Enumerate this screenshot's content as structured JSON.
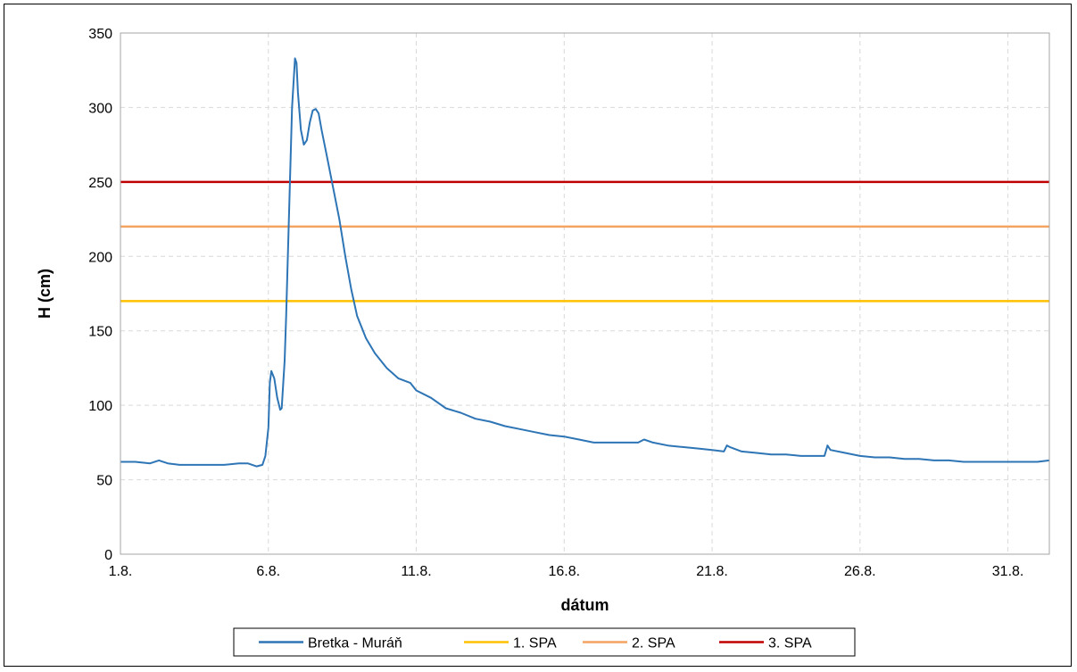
{
  "chart_data": {
    "type": "line",
    "xlabel": "dátum",
    "ylabel": "H (cm)",
    "ylim": [
      0,
      350
    ],
    "yticks": [
      0,
      50,
      100,
      150,
      200,
      250,
      300,
      350
    ],
    "xlim": [
      1,
      32.4
    ],
    "xticks": [
      {
        "value": 1,
        "label": "1.8."
      },
      {
        "value": 6,
        "label": "6.8."
      },
      {
        "value": 11,
        "label": "11.8."
      },
      {
        "value": 16,
        "label": "16.8."
      },
      {
        "value": 21,
        "label": "21.8."
      },
      {
        "value": 26,
        "label": "26.8."
      },
      {
        "value": 31,
        "label": "31.8."
      }
    ],
    "grid": true,
    "legend_position": "bottom",
    "series": [
      {
        "name": "Bretka - Muráň",
        "color": "#2E75B6",
        "points": [
          [
            1.0,
            62
          ],
          [
            1.5,
            62
          ],
          [
            2.0,
            61
          ],
          [
            2.3,
            63
          ],
          [
            2.6,
            61
          ],
          [
            3.0,
            60
          ],
          [
            3.5,
            60
          ],
          [
            4.0,
            60
          ],
          [
            4.5,
            60
          ],
          [
            5.0,
            61
          ],
          [
            5.3,
            61
          ],
          [
            5.6,
            59
          ],
          [
            5.8,
            60
          ],
          [
            5.9,
            66
          ],
          [
            6.0,
            85
          ],
          [
            6.05,
            115
          ],
          [
            6.1,
            123
          ],
          [
            6.2,
            118
          ],
          [
            6.3,
            105
          ],
          [
            6.4,
            97
          ],
          [
            6.45,
            98
          ],
          [
            6.55,
            130
          ],
          [
            6.6,
            160
          ],
          [
            6.7,
            230
          ],
          [
            6.8,
            300
          ],
          [
            6.9,
            333
          ],
          [
            6.95,
            330
          ],
          [
            7.0,
            310
          ],
          [
            7.1,
            285
          ],
          [
            7.2,
            275
          ],
          [
            7.3,
            278
          ],
          [
            7.4,
            290
          ],
          [
            7.5,
            298
          ],
          [
            7.6,
            299
          ],
          [
            7.7,
            296
          ],
          [
            7.8,
            285
          ],
          [
            8.0,
            265
          ],
          [
            8.2,
            245
          ],
          [
            8.4,
            225
          ],
          [
            8.6,
            200
          ],
          [
            8.8,
            178
          ],
          [
            9.0,
            160
          ],
          [
            9.3,
            145
          ],
          [
            9.6,
            135
          ],
          [
            10.0,
            125
          ],
          [
            10.4,
            118
          ],
          [
            10.8,
            115
          ],
          [
            11.0,
            110
          ],
          [
            11.5,
            105
          ],
          [
            12.0,
            98
          ],
          [
            12.5,
            95
          ],
          [
            13.0,
            91
          ],
          [
            13.5,
            89
          ],
          [
            14.0,
            86
          ],
          [
            14.5,
            84
          ],
          [
            15.0,
            82
          ],
          [
            15.5,
            80
          ],
          [
            16.0,
            79
          ],
          [
            16.5,
            77
          ],
          [
            17.0,
            75
          ],
          [
            17.5,
            75
          ],
          [
            18.0,
            75
          ],
          [
            18.5,
            75
          ],
          [
            18.7,
            77
          ],
          [
            19.0,
            75
          ],
          [
            19.5,
            73
          ],
          [
            20.0,
            72
          ],
          [
            20.5,
            71
          ],
          [
            21.0,
            70
          ],
          [
            21.4,
            69
          ],
          [
            21.5,
            73
          ],
          [
            21.6,
            72
          ],
          [
            22.0,
            69
          ],
          [
            22.5,
            68
          ],
          [
            23.0,
            67
          ],
          [
            23.5,
            67
          ],
          [
            24.0,
            66
          ],
          [
            24.5,
            66
          ],
          [
            24.8,
            66
          ],
          [
            24.9,
            73
          ],
          [
            25.0,
            70
          ],
          [
            25.5,
            68
          ],
          [
            26.0,
            66
          ],
          [
            26.5,
            65
          ],
          [
            27.0,
            65
          ],
          [
            27.5,
            64
          ],
          [
            28.0,
            64
          ],
          [
            28.5,
            63
          ],
          [
            29.0,
            63
          ],
          [
            29.5,
            62
          ],
          [
            30.0,
            62
          ],
          [
            30.5,
            62
          ],
          [
            31.0,
            62
          ],
          [
            31.5,
            62
          ],
          [
            32.0,
            62
          ],
          [
            32.4,
            63
          ]
        ]
      },
      {
        "name": "1. SPA",
        "color": "#FFC000",
        "constant": 170
      },
      {
        "name": "2. SPA",
        "color": "#F4A460",
        "constant": 220
      },
      {
        "name": "3. SPA",
        "color": "#C00000",
        "constant": 250
      }
    ]
  }
}
